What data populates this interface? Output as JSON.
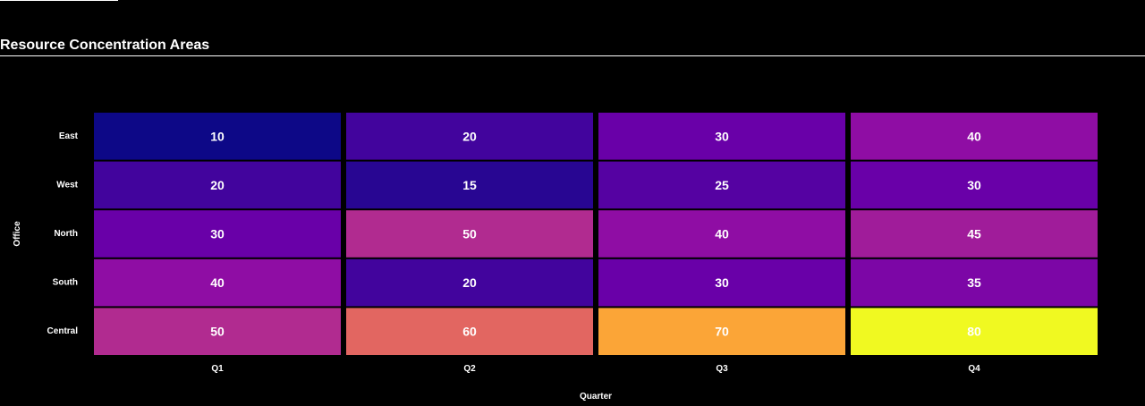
{
  "title": "Resource Concentration Areas",
  "chart_data": {
    "type": "heatmap",
    "title": "Resource Concentration Areas",
    "xlabel": "Quarter",
    "ylabel": "Office",
    "x": [
      "Q1",
      "Q2",
      "Q3",
      "Q4"
    ],
    "y": [
      "East",
      "West",
      "North",
      "South",
      "Central"
    ],
    "z": [
      [
        10,
        20,
        30,
        40
      ],
      [
        20,
        15,
        25,
        30
      ],
      [
        30,
        50,
        40,
        45
      ],
      [
        40,
        20,
        30,
        35
      ],
      [
        50,
        60,
        70,
        80
      ]
    ],
    "zlim": [
      10,
      80
    ],
    "colorscale": "plasma",
    "colors": {
      "background": "#000000",
      "text": "#ffffff"
    }
  }
}
